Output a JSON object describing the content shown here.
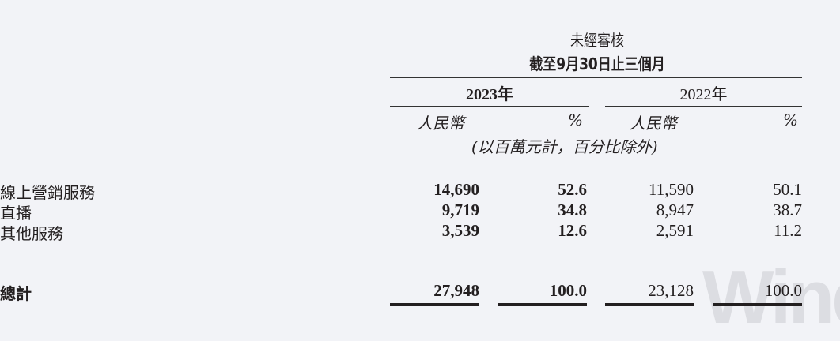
{
  "header": {
    "title": "未經審核",
    "period": "截至9月30日止三個月",
    "years": [
      "2023年",
      "2022年"
    ],
    "currency": "人民幣",
    "percent": "%",
    "unit_note": "(以百萬元計，百分比除外)"
  },
  "rows": [
    {
      "label": "線上營銷服務",
      "v2023": "14,690",
      "p2023": "52.6",
      "v2022": "11,590",
      "p2022": "50.1"
    },
    {
      "label": "直播",
      "v2023": "9,719",
      "p2023": "34.8",
      "v2022": "8,947",
      "p2022": "38.7"
    },
    {
      "label": "其他服務",
      "v2023": "3,539",
      "p2023": "12.6",
      "v2022": "2,591",
      "p2022": "11.2"
    }
  ],
  "total": {
    "label": "總計",
    "v2023": "27,948",
    "p2023": "100.0",
    "v2022": "23,128",
    "p2022": "100.0"
  },
  "watermark": "Wind"
}
